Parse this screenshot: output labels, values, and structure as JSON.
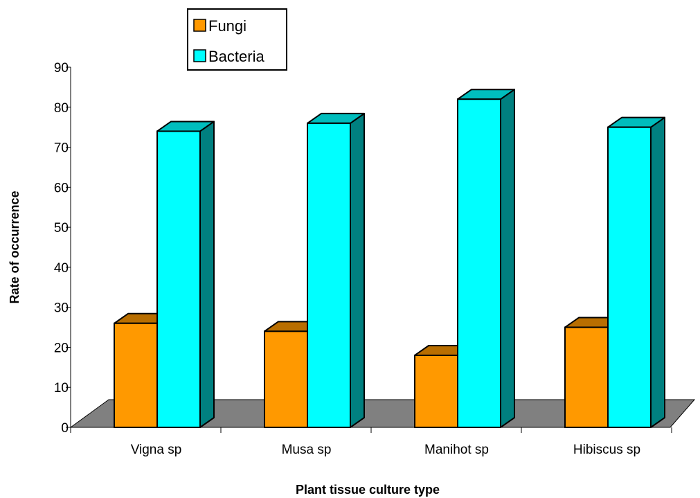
{
  "chart_data": {
    "type": "bar",
    "title": "",
    "xlabel": "Plant tissue culture type",
    "ylabel": "Rate of occurrence",
    "categories": [
      "Vigna sp",
      "Musa sp",
      "Manihot sp",
      "Hibiscus sp"
    ],
    "series": [
      {
        "name": "Fungi",
        "values": [
          26,
          24,
          18,
          25
        ],
        "color": "#FF9900",
        "top_color": "#B86E00",
        "side_color": "#A36200"
      },
      {
        "name": "Bacteria",
        "values": [
          74,
          76,
          82,
          75
        ],
        "color": "#00FFFF",
        "top_color": "#00BDBD",
        "side_color": "#008080"
      }
    ],
    "ylim": [
      0,
      90
    ],
    "yticks": [
      0,
      10,
      20,
      30,
      40,
      50,
      60,
      70,
      80,
      90
    ],
    "floor_color": "#808080",
    "legend_position": "top",
    "grid": false,
    "three_d": true
  }
}
